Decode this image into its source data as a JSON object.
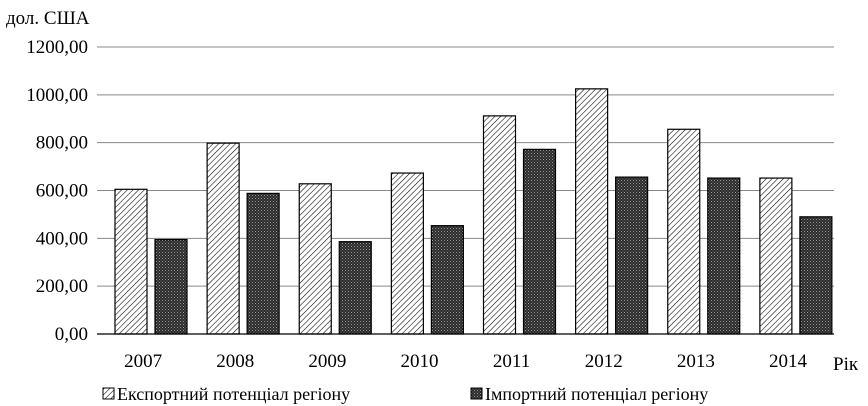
{
  "chart_data": {
    "type": "bar",
    "ylabel": "дол. США",
    "xlabel": "Рік",
    "categories": [
      "2007",
      "2008",
      "2009",
      "2010",
      "2011",
      "2012",
      "2013",
      "2014"
    ],
    "series": [
      {
        "name": "Експортний потенціал регіону",
        "values": [
          605,
          798,
          628,
          673,
          912,
          1025,
          856,
          652
        ],
        "pattern": "hatch"
      },
      {
        "name": "Імпортний потенціал регіону",
        "values": [
          395,
          588,
          386,
          453,
          772,
          656,
          652,
          490
        ],
        "pattern": "dots"
      }
    ],
    "ylim": [
      0,
      1200
    ],
    "yticks": [
      "0,00",
      "200,00",
      "400,00",
      "600,00",
      "800,00",
      "1000,00",
      "1200,00"
    ],
    "grid": true,
    "legend_position": "bottom",
    "colors": {
      "bar_stroke": "#000000",
      "hatch": "#000000",
      "grid": "#888888"
    }
  }
}
